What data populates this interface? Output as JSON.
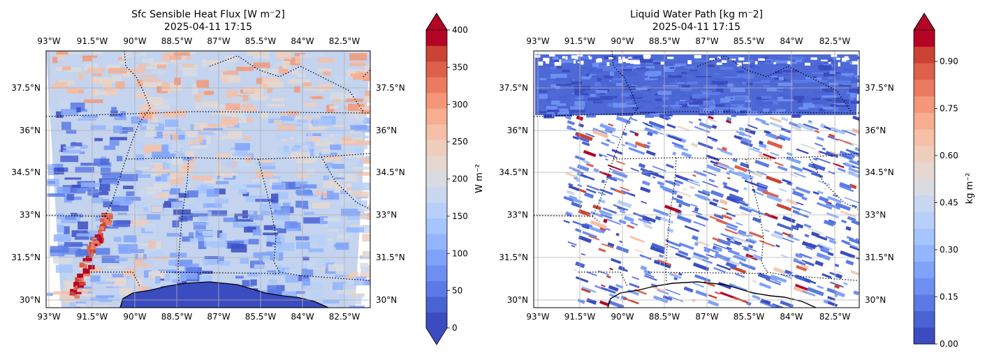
{
  "panels": [
    {
      "title_line1": "Sfc Sensible Heat Flux [W m$^-$2]",
      "title_line1_display": "Sfc Sensible Heat Flux [W m⁻2]",
      "title_line2": "2025-04-11 17:15",
      "top_lon_ticks": [
        "93°W",
        "91.5°W",
        "90°W",
        "88.5°W",
        "87°W",
        "85.5°W",
        "84°W",
        "82.5°W"
      ],
      "bottom_lon_ticks": [
        "93°W",
        "91.5°W",
        "90°W",
        "88.5°W",
        "87°W",
        "85.5°W",
        "84°W",
        "82.5°W"
      ],
      "left_lat_ticks": [
        "37.5°N",
        "36°N",
        "34.5°N",
        "33°N",
        "31.5°N",
        "30°N"
      ],
      "right_lat_ticks": [
        "37.5°N",
        "36°N",
        "34.5°N",
        "33°N",
        "31.5°N",
        "30°N"
      ],
      "colorbar": {
        "label": "W m⁻²",
        "ticks": [
          "400",
          "350",
          "300",
          "250",
          "200",
          "150",
          "100",
          "50",
          "0"
        ],
        "min": 0,
        "max": 400,
        "extend": "both"
      }
    },
    {
      "title_line1": "Liquid Water Path [kg m$^-$2]",
      "title_line1_display": "Liquid Water Path [kg m⁻2]",
      "title_line2": "2025-04-11 17:15",
      "top_lon_ticks": [
        "93°W",
        "91.5°W",
        "90°W",
        "88.5°W",
        "87°W",
        "85.5°W",
        "84°W",
        "82.5°W"
      ],
      "bottom_lon_ticks": [
        "93°W",
        "91.5°W",
        "90°W",
        "88.5°W",
        "87°W",
        "85.5°W",
        "84°W",
        "82.5°W"
      ],
      "left_lat_ticks": [
        "37.5°N",
        "36°N",
        "34.5°N",
        "33°N",
        "31.5°N",
        "30°N"
      ],
      "right_lat_ticks": [
        "37.5°N",
        "36°N",
        "34.5°N",
        "33°N",
        "31.5°N",
        "30°N"
      ],
      "colorbar": {
        "label": "kg m⁻²",
        "ticks": [
          "0.90",
          "0.75",
          "0.60",
          "0.45",
          "0.30",
          "0.15",
          "0.00"
        ],
        "min": 0,
        "max": 1.0,
        "extend": "max"
      }
    }
  ],
  "colors": {
    "cmap": [
      "#3b4cc0",
      "#4a63d3",
      "#5b7ae5",
      "#6d8ff1",
      "#80a3fa",
      "#93b5fe",
      "#a6c4fe",
      "#b8d0f9",
      "#c9d7f0",
      "#d8dce2",
      "#e5d8d1",
      "#efcebd",
      "#f5c0a7",
      "#f6ad90",
      "#f39778",
      "#ea7b60",
      "#dd604a",
      "#cb4335",
      "#b40426"
    ],
    "ocean": "#3b4cc0",
    "missing": "#ffffff"
  }
}
